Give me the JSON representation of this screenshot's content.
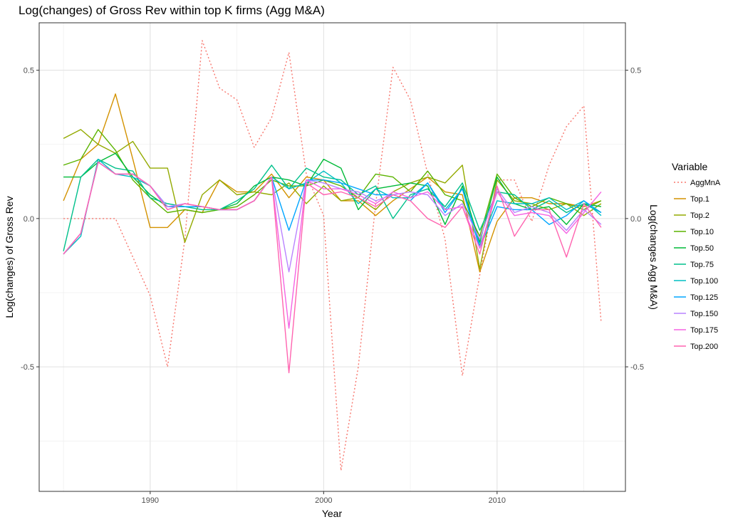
{
  "chart_data": {
    "type": "line",
    "title": "Log(changes) of Gross Rev within top K firms (Agg M&A)",
    "xlabel": "Year",
    "ylabel": "Log(changes) of Gross Rev",
    "y2label": "Log(changes Agg M&A)",
    "xlim": [
      1983.6,
      2017.4
    ],
    "ylim": [
      -0.92,
      0.66
    ],
    "x_ticks": [
      1990,
      2000,
      2010
    ],
    "y_ticks": [
      -0.5,
      0.0,
      0.5
    ],
    "y_tick_labels": [
      "-0.5",
      "0.0",
      "0.5"
    ],
    "grid": true,
    "legend_position": "right",
    "legend_title": "Variable",
    "x": [
      1985,
      1986,
      1987,
      1988,
      1989,
      1990,
      1991,
      1992,
      1993,
      1994,
      1995,
      1996,
      1997,
      1998,
      1999,
      2000,
      2001,
      2002,
      2003,
      2004,
      2005,
      2006,
      2007,
      2008,
      2009,
      2010,
      2011,
      2012,
      2013,
      2014,
      2015,
      2016
    ],
    "series": [
      {
        "name": "AggMnA",
        "color": "#F8766D",
        "dashed": true,
        "values": [
          0.0,
          0.0,
          0.0,
          0.0,
          -0.13,
          -0.26,
          -0.5,
          -0.07,
          0.6,
          0.44,
          0.4,
          0.24,
          0.34,
          0.56,
          0.15,
          0.01,
          -0.85,
          -0.5,
          0.05,
          0.51,
          0.4,
          0.15,
          -0.07,
          -0.53,
          -0.19,
          0.13,
          0.13,
          -0.01,
          0.18,
          0.31,
          0.38,
          -0.35
        ]
      },
      {
        "name": "Top.1",
        "color": "#D39200",
        "values": [
          0.06,
          0.2,
          0.25,
          0.42,
          0.2,
          -0.03,
          -0.03,
          0.03,
          0.02,
          0.13,
          0.09,
          0.09,
          0.15,
          0.07,
          0.14,
          0.13,
          0.06,
          0.06,
          0.01,
          0.06,
          0.1,
          0.14,
          0.09,
          0.08,
          -0.18,
          -0.01,
          0.07,
          0.07,
          0.05,
          0.05,
          0.04,
          0.06
        ]
      },
      {
        "name": "Top.2",
        "color": "#93AA00",
        "values": [
          0.27,
          0.3,
          0.25,
          0.22,
          0.26,
          0.17,
          0.17,
          -0.08,
          0.08,
          0.13,
          0.08,
          0.09,
          0.08,
          0.12,
          0.05,
          0.11,
          0.06,
          0.07,
          0.03,
          0.09,
          0.12,
          0.14,
          0.12,
          0.18,
          -0.17,
          0.13,
          0.06,
          0.05,
          0.03,
          0.05,
          0.01,
          0.05
        ]
      },
      {
        "name": "Top.10",
        "color": "#5BB300",
        "values": [
          0.18,
          0.2,
          0.3,
          0.23,
          0.13,
          0.07,
          0.02,
          0.03,
          0.02,
          0.03,
          0.04,
          0.08,
          0.13,
          0.11,
          0.11,
          0.13,
          0.11,
          0.07,
          0.15,
          0.14,
          0.09,
          0.16,
          0.08,
          0.06,
          -0.06,
          0.15,
          0.07,
          0.04,
          0.07,
          0.05,
          0.03,
          0.06
        ]
      },
      {
        "name": "Top.50",
        "color": "#00BA38",
        "values": [
          0.14,
          0.14,
          0.19,
          0.22,
          0.14,
          0.08,
          0.04,
          0.04,
          0.04,
          0.03,
          0.05,
          0.11,
          0.14,
          0.13,
          0.11,
          0.2,
          0.17,
          0.03,
          0.1,
          0.11,
          0.12,
          0.11,
          -0.02,
          0.11,
          -0.08,
          0.14,
          0.05,
          0.03,
          0.04,
          -0.02,
          0.05,
          0.04
        ]
      },
      {
        "name": "Top.75",
        "color": "#00C08B",
        "values": [
          -0.11,
          0.14,
          0.2,
          0.17,
          0.16,
          0.07,
          0.05,
          0.04,
          0.03,
          0.03,
          0.06,
          0.1,
          0.18,
          0.1,
          0.17,
          0.14,
          0.13,
          0.08,
          0.11,
          0.0,
          0.08,
          0.1,
          0.04,
          0.12,
          -0.04,
          0.09,
          0.08,
          0.03,
          0.06,
          0.02,
          0.05,
          0.02
        ]
      },
      {
        "name": "Top.100",
        "color": "#00BFC4",
        "values": [
          -0.12,
          -0.06,
          0.2,
          0.15,
          0.14,
          0.11,
          0.04,
          0.04,
          0.04,
          0.03,
          0.03,
          0.06,
          0.14,
          0.1,
          0.12,
          0.16,
          0.12,
          0.05,
          0.1,
          0.07,
          0.07,
          0.12,
          0.03,
          0.1,
          -0.09,
          0.06,
          0.05,
          0.05,
          0.07,
          0.03,
          0.06,
          0.01
        ]
      },
      {
        "name": "Top.125",
        "color": "#00A5FF",
        "values": [
          -0.12,
          -0.05,
          0.19,
          0.15,
          0.15,
          0.11,
          0.04,
          0.04,
          0.04,
          0.03,
          0.03,
          0.06,
          0.14,
          -0.04,
          0.13,
          0.13,
          0.12,
          0.1,
          0.08,
          0.08,
          0.06,
          0.12,
          0.02,
          0.1,
          -0.1,
          0.04,
          0.03,
          0.03,
          -0.02,
          0.01,
          0.06,
          0.02
        ]
      },
      {
        "name": "Top.150",
        "color": "#B983FF",
        "values": [
          -0.12,
          -0.05,
          0.19,
          0.15,
          0.15,
          0.11,
          0.04,
          0.05,
          0.04,
          0.03,
          0.03,
          0.06,
          0.14,
          -0.18,
          0.13,
          0.12,
          0.1,
          0.09,
          0.06,
          0.08,
          0.09,
          0.08,
          0.01,
          0.05,
          -0.07,
          0.1,
          0.02,
          0.04,
          0.02,
          -0.04,
          0.03,
          -0.02
        ]
      },
      {
        "name": "Top.175",
        "color": "#F564E3",
        "values": [
          -0.12,
          -0.05,
          0.19,
          0.15,
          0.15,
          0.11,
          0.03,
          0.05,
          0.04,
          0.03,
          0.03,
          0.06,
          0.14,
          -0.37,
          0.13,
          0.1,
          0.1,
          0.08,
          0.05,
          0.09,
          0.07,
          0.09,
          0.03,
          0.04,
          -0.1,
          0.09,
          0.01,
          0.02,
          0.01,
          -0.05,
          0.02,
          0.09
        ]
      },
      {
        "name": "Top.200",
        "color": "#FF64B0",
        "values": [
          -0.12,
          -0.05,
          0.19,
          0.15,
          0.15,
          0.11,
          0.03,
          0.05,
          0.04,
          0.03,
          0.03,
          0.06,
          0.14,
          -0.52,
          0.12,
          0.08,
          0.09,
          0.07,
          0.04,
          0.08,
          0.06,
          0.0,
          -0.03,
          0.04,
          -0.12,
          0.11,
          -0.06,
          0.03,
          0.03,
          -0.13,
          0.05,
          -0.03
        ]
      }
    ]
  }
}
